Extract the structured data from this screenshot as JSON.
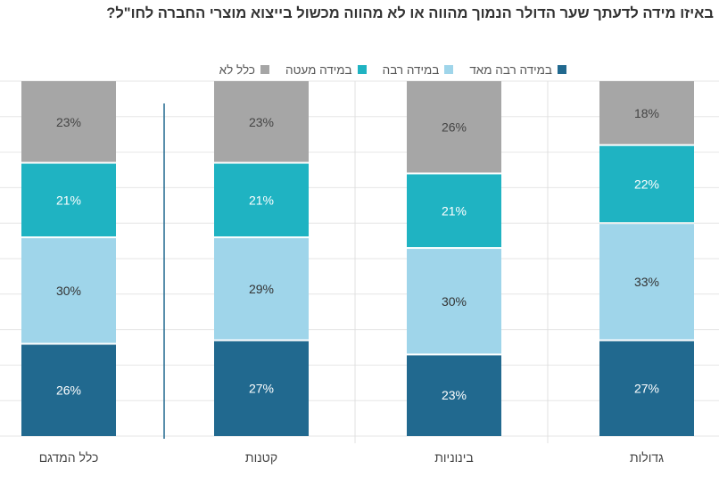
{
  "title": "באיזו מידה לדעתך שער הדולר הנמוך מהווה או לא מהווה מכשול בייצוא מוצרי החברה לחו\"ל?",
  "chart_data": {
    "type": "bar",
    "stacked": true,
    "categories": [
      "כלל המדגם",
      "קטנות",
      "בינוניות",
      "גדולות"
    ],
    "series": [
      {
        "name": "במידה רבה מאד",
        "color": "#21698f",
        "label_color": "#ffffff",
        "values": [
          26,
          27,
          23,
          27
        ]
      },
      {
        "name": "במידה רבה",
        "color": "#9fd5ea",
        "label_color": "#333333",
        "values": [
          30,
          29,
          30,
          33
        ]
      },
      {
        "name": "במידה מעטה",
        "color": "#1fb3c2",
        "label_color": "#ffffff",
        "values": [
          21,
          21,
          21,
          22
        ]
      },
      {
        "name": "כלל לא",
        "color": "#a6a6a6",
        "label_color": "#444444",
        "values": [
          23,
          23,
          26,
          18
        ]
      }
    ],
    "value_suffix": "%",
    "ylim": [
      0,
      100
    ],
    "legend_position": "top",
    "grid": true
  }
}
